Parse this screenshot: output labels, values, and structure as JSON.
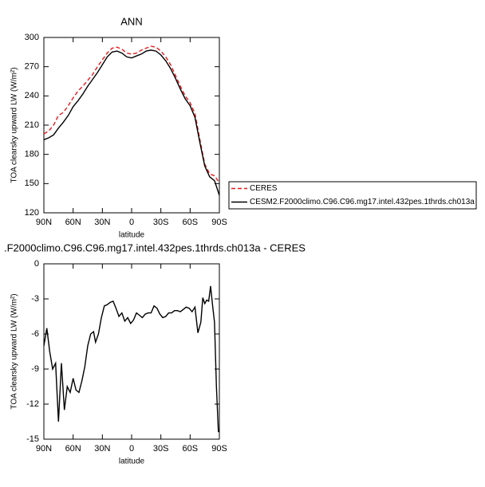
{
  "chart_data": [
    {
      "type": "line",
      "title": "ANN",
      "x_label": "latitude",
      "y_label": "TOA clearsky upward LW (W/m²)",
      "x": [
        90,
        85,
        80,
        75,
        70,
        65,
        60,
        55,
        50,
        45,
        40,
        35,
        30,
        25,
        20,
        15,
        10,
        5,
        0,
        -5,
        -10,
        -15,
        -20,
        -25,
        -30,
        -35,
        -40,
        -45,
        -50,
        -55,
        -60,
        -65,
        -70,
        -75,
        -80,
        -85,
        -90
      ],
      "series": [
        {
          "name": "CERES",
          "color": "#e41a1c",
          "dash": true,
          "values": [
            201,
            204,
            210,
            220,
            223,
            230,
            238,
            245,
            250,
            256,
            262,
            270,
            277,
            284,
            289,
            290,
            288,
            284,
            283,
            284,
            287,
            289,
            291,
            290,
            286,
            280,
            272,
            261,
            250,
            240,
            233,
            222,
            195,
            170,
            160,
            158,
            151
          ]
        },
        {
          "name": "CESM2.F2000climo.C96.C96.mg17.intel.432pes.1thrds.ch013a",
          "color": "#000000",
          "dash": false,
          "values": [
            195,
            197,
            200,
            207,
            213,
            220,
            229,
            235,
            242,
            250,
            257,
            264,
            272,
            280,
            285,
            286,
            284,
            280,
            279,
            281,
            283,
            286,
            287,
            286,
            282,
            276,
            268,
            258,
            247,
            237,
            230,
            218,
            192,
            168,
            157,
            153,
            138
          ]
        }
      ],
      "xlim": [
        90,
        -90
      ],
      "xticks": [
        {
          "value": 90,
          "label": "90N"
        },
        {
          "value": 60,
          "label": "60N"
        },
        {
          "value": 30,
          "label": "30N"
        },
        0,
        {
          "value": -30,
          "label": "30S"
        },
        {
          "value": -60,
          "label": "60S"
        },
        {
          "value": -90,
          "label": "90S"
        }
      ],
      "ylim": [
        120,
        300
      ],
      "yticks": [
        120,
        150,
        180,
        210,
        240,
        270,
        300
      ]
    },
    {
      "type": "line",
      "title": ".F2000climo.C96.C96.mg17.intel.432pes.1thrds.ch013a - CERES",
      "x_label": "latitude",
      "y_label": "TOA clearsky upward LW (W/m²)",
      "x": [
        90,
        87,
        84,
        81,
        78,
        75,
        72,
        69,
        66,
        63,
        60,
        57,
        54,
        51,
        48,
        45,
        42,
        39,
        37,
        34,
        31,
        28,
        25,
        22,
        19,
        16,
        13,
        10,
        7,
        4,
        1,
        -2,
        -5,
        -8,
        -11,
        -14,
        -17,
        -20,
        -23,
        -26,
        -29,
        -32,
        -35,
        -38,
        -41,
        -44,
        -47,
        -50,
        -53,
        -56,
        -59,
        -62,
        -65,
        -68,
        -71,
        -73,
        -75,
        -77,
        -79,
        -81,
        -83,
        -85,
        -87,
        -89
      ],
      "series": [
        {
          "color": "#000000",
          "dash": false,
          "values": [
            -7.0,
            -5.5,
            -7.5,
            -9.0,
            -8.5,
            -13.5,
            -8.5,
            -12.5,
            -10.5,
            -11.0,
            -9.8,
            -10.8,
            -11.0,
            -10.0,
            -8.8,
            -7.0,
            -6.0,
            -5.8,
            -6.7,
            -6.0,
            -4.6,
            -3.6,
            -3.5,
            -3.3,
            -3.2,
            -3.8,
            -4.5,
            -4.2,
            -4.9,
            -4.6,
            -5.1,
            -4.8,
            -4.2,
            -4.4,
            -4.6,
            -4.3,
            -4.2,
            -4.2,
            -3.6,
            -3.8,
            -4.3,
            -4.6,
            -4.5,
            -4.2,
            -4.2,
            -4.0,
            -4.0,
            -4.1,
            -3.9,
            -3.7,
            -3.8,
            -4.1,
            -3.7,
            -5.9,
            -5.0,
            -2.9,
            -3.4,
            -3.1,
            -3.2,
            -1.9,
            -3.5,
            -5.0,
            -10.5,
            -14.4
          ]
        }
      ],
      "xlim": [
        90,
        -90
      ],
      "xticks": [
        {
          "value": 90,
          "label": "90N"
        },
        {
          "value": 60,
          "label": "60N"
        },
        {
          "value": 30,
          "label": "30N"
        },
        0,
        {
          "value": -30,
          "label": "30S"
        },
        {
          "value": -60,
          "label": "60S"
        },
        {
          "value": -90,
          "label": "90S"
        }
      ],
      "ylim": [
        -15,
        0
      ],
      "yticks": [
        -15,
        -12,
        -9,
        -6,
        -3,
        0
      ]
    }
  ]
}
